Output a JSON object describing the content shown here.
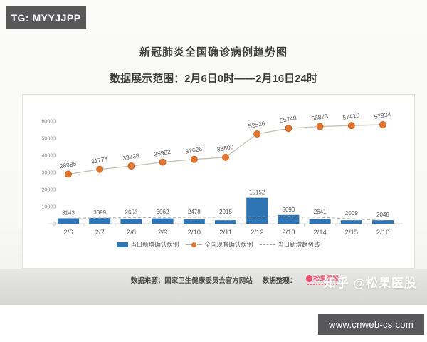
{
  "badges": {
    "tg": "TG: MYYJJPP",
    "url": "www.cnweb-cs.com"
  },
  "header": {
    "title": "新冠肺炎全国确诊病例趋势图",
    "subtitle": "数据展示范围：2月6日0时——2月16日24时"
  },
  "chart_data": {
    "type": "bar+line",
    "title": "新冠肺炎全国确诊病例趋势图",
    "categories": [
      "2/6",
      "2/7",
      "2/8",
      "2/9",
      "2/10",
      "2/11",
      "2/12",
      "2/13",
      "2/14",
      "2/15",
      "2/16"
    ],
    "series": [
      {
        "name": "当日新增确认病例",
        "type": "bar",
        "color": "#2e75b6",
        "values": [
          3143,
          3399,
          2656,
          3062,
          2478,
          2015,
          15152,
          5090,
          2641,
          2009,
          2048
        ]
      },
      {
        "name": "全国现有确认病例",
        "type": "line",
        "color": "#e0762f",
        "line_color": "#c6c0b8",
        "values": [
          28985,
          31774,
          33738,
          35982,
          37626,
          38800,
          52526,
          55748,
          56873,
          57416,
          57934
        ]
      },
      {
        "name": "当日新增趋势线",
        "type": "dashed-line",
        "color": "#b3b3b3",
        "values": [
          3200,
          3350,
          3500,
          3650,
          3750,
          3850,
          4000,
          4100,
          3700,
          2900,
          1900
        ]
      }
    ],
    "ylim": [
      0,
      60000
    ],
    "yticks": [
      0,
      10000,
      20000,
      30000,
      40000,
      50000,
      60000
    ],
    "grid": false,
    "legend_position": "bottom"
  },
  "footer": {
    "source": "数据来源：国家卫生健康委员会官方网站",
    "prepared": "数据整理：",
    "logo_text": "松果医股"
  },
  "watermark": {
    "zhihu": "知乎 @松果医股"
  },
  "colors": {
    "bar_blue": "#2e75b6",
    "point_orange": "#e0762f",
    "badge_gray": "#58585a",
    "logo_pink": "#e8607a"
  }
}
